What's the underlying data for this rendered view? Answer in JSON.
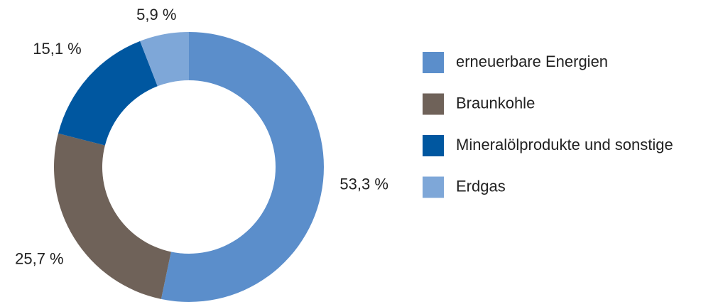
{
  "chart_data": {
    "type": "donut",
    "categories": [
      "erneuerbare Energien",
      "Braunkohle",
      "Mineralölprodukte und sonstige",
      "Erdgas"
    ],
    "values": [
      53.3,
      25.7,
      15.1,
      5.9
    ],
    "value_labels": [
      "53,3 %",
      "25,7 %",
      "15,1 %",
      "5,9 %"
    ],
    "colors": [
      "#5b8ecb",
      "#6f6259",
      "#0057a0",
      "#7ea7d8"
    ],
    "legend": "right"
  }
}
